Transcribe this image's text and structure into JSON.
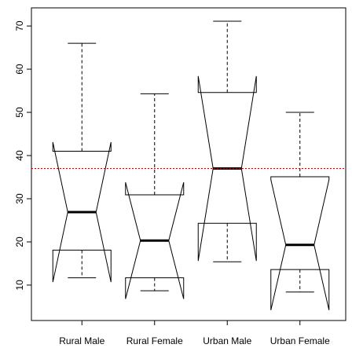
{
  "chart_data": {
    "type": "box",
    "notched": true,
    "categories": [
      "Rural Male",
      "Rural Female",
      "Urban Male",
      "Urban Female"
    ],
    "boxes": [
      {
        "min": 11.7,
        "q1": 18.1,
        "median": 26.9,
        "q3": 41.0,
        "max": 66.0,
        "notch_low": 10.7,
        "notch_high": 43.1
      },
      {
        "min": 8.7,
        "q1": 11.7,
        "median": 20.3,
        "q3": 30.9,
        "max": 54.3,
        "notch_low": 6.8,
        "notch_high": 33.8
      },
      {
        "min": 15.4,
        "q1": 24.3,
        "median": 37.0,
        "q3": 54.6,
        "max": 71.1,
        "notch_low": 15.6,
        "notch_high": 58.4
      },
      {
        "min": 8.4,
        "q1": 13.6,
        "median": 19.3,
        "q3": 35.1,
        "max": 50.0,
        "notch_low": 4.2,
        "notch_high": 34.4
      }
    ],
    "color": "#000000",
    "hline": {
      "value": 37,
      "color": "#c00000"
    },
    "ylim": [
      1.8,
      74.2
    ],
    "yticks": [
      10,
      20,
      30,
      40,
      50,
      60,
      70
    ]
  }
}
